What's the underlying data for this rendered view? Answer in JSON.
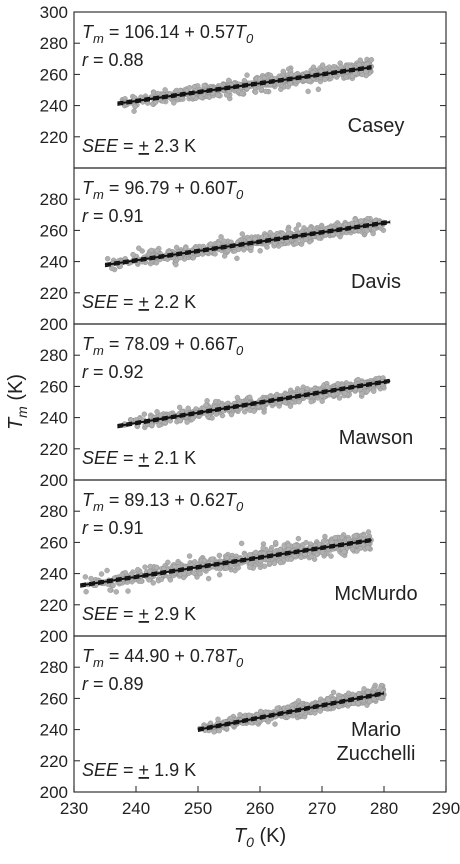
{
  "chart_data": {
    "type": "scatter",
    "xlabel": {
      "symbol": "T",
      "subscript": "0",
      "unit": "(K)"
    },
    "ylabel": {
      "symbol": "T",
      "subscript": "m",
      "unit": "(K)"
    },
    "xlim": [
      230,
      290
    ],
    "xticks": [
      230,
      240,
      250,
      260,
      270,
      280,
      290
    ],
    "grid": false,
    "legend": "none",
    "point_color": "#b0b0b0",
    "line_color": "#111111",
    "panels": [
      {
        "station": [
          "Casey"
        ],
        "intercept_text": "106.14",
        "slope_text": "0.57",
        "intercept": 106.14,
        "slope": 0.57,
        "r_text": "0.88",
        "see_text": "2.3 K",
        "see": 2.3,
        "ylim": [
          200,
          300
        ],
        "yticks": [
          220,
          240,
          260,
          280,
          300
        ],
        "x_range": [
          237,
          278
        ],
        "fit_x": [
          237,
          278
        ]
      },
      {
        "station": [
          "Davis"
        ],
        "intercept_text": "96.79",
        "slope_text": "0.60",
        "intercept": 96.79,
        "slope": 0.6,
        "r_text": "0.91",
        "see_text": "2.2 K",
        "see": 2.2,
        "ylim": [
          200,
          300
        ],
        "yticks": [
          200,
          220,
          240,
          260,
          280
        ],
        "x_range": [
          235,
          280
        ],
        "fit_x": [
          235,
          281
        ]
      },
      {
        "station": [
          "Mawson"
        ],
        "intercept_text": "78.09",
        "slope_text": "0.66",
        "intercept": 78.09,
        "slope": 0.66,
        "r_text": "0.92",
        "see_text": "2.1 K",
        "see": 2.1,
        "ylim": [
          200,
          300
        ],
        "yticks": [
          200,
          220,
          240,
          260,
          280
        ],
        "x_range": [
          238,
          280
        ],
        "fit_x": [
          237,
          281
        ]
      },
      {
        "station": [
          "McMurdo"
        ],
        "intercept_text": "89.13",
        "slope_text": "0.62",
        "intercept": 89.13,
        "slope": 0.62,
        "r_text": "0.91",
        "see_text": "2.9 K",
        "see": 2.9,
        "ylim": [
          200,
          300
        ],
        "yticks": [
          200,
          220,
          240,
          260,
          280
        ],
        "x_range": [
          231,
          278
        ],
        "fit_x": [
          231,
          278
        ]
      },
      {
        "station": [
          "Mario",
          "Zucchelli"
        ],
        "intercept_text": "44.90",
        "slope_text": "0.78",
        "intercept": 44.9,
        "slope": 0.78,
        "r_text": "0.89",
        "see_text": "1.9 K",
        "see": 1.9,
        "ylim": [
          200,
          300
        ],
        "yticks": [
          200,
          220,
          240,
          260,
          280
        ],
        "x_range": [
          250,
          280
        ],
        "fit_x": [
          250,
          280
        ]
      }
    ]
  }
}
